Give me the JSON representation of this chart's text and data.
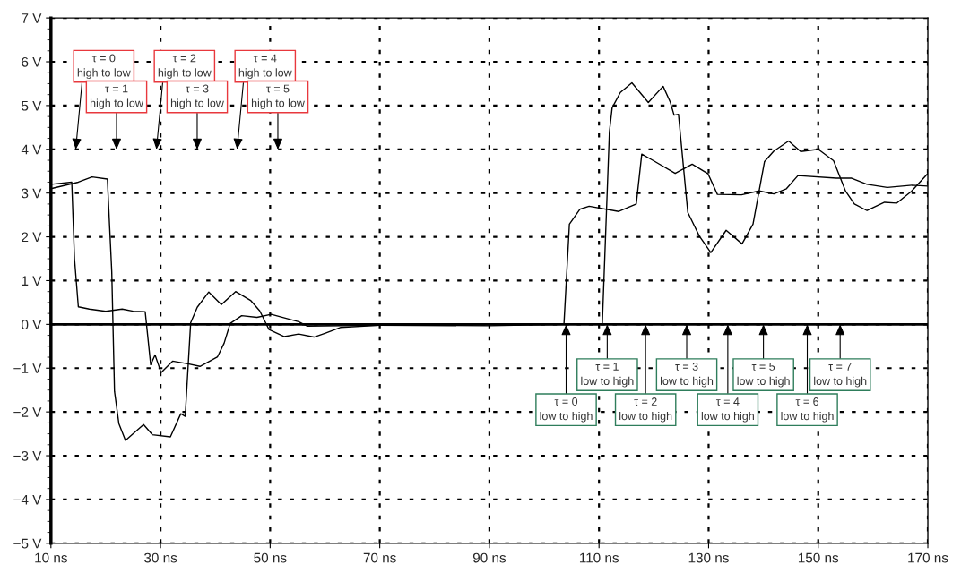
{
  "chart_data": {
    "type": "line",
    "xlim": [
      10,
      170
    ],
    "xticks": [
      {
        "value": 10,
        "label": "10 ns"
      },
      {
        "value": 30,
        "label": "30 ns"
      },
      {
        "value": 50,
        "label": "50 ns"
      },
      {
        "value": 70,
        "label": "70 ns"
      },
      {
        "value": 90,
        "label": "90 ns"
      },
      {
        "value": 110,
        "label": "110 ns"
      },
      {
        "value": 130,
        "label": "130 ns"
      },
      {
        "value": 150,
        "label": "150 ns"
      },
      {
        "value": 170,
        "label": "170 ns"
      }
    ],
    "ylim": [
      -5,
      7
    ],
    "yticks": [
      {
        "value": -5,
        "label": "−5 V"
      },
      {
        "value": -4,
        "label": "−4 V"
      },
      {
        "value": -3,
        "label": "−3 V"
      },
      {
        "value": -2,
        "label": "−2 V"
      },
      {
        "value": -1,
        "label": "−1 V"
      },
      {
        "value": 0,
        "label": "0 V"
      },
      {
        "value": 1,
        "label": "1 V"
      },
      {
        "value": 2,
        "label": "2 V"
      },
      {
        "value": 3,
        "label": "3 V"
      },
      {
        "value": 4,
        "label": "4 V"
      },
      {
        "value": 5,
        "label": "5 V"
      },
      {
        "value": 6,
        "label": "6 V"
      },
      {
        "value": 7,
        "label": "7 V"
      }
    ],
    "grid": true,
    "line_style": "solid",
    "ref_lines": [
      {
        "axis": "y",
        "value": 0,
        "color": "#000000"
      }
    ],
    "series": [
      {
        "color": "#000000",
        "x": [
          10,
          13.8,
          14.3,
          15,
          17,
          20,
          23,
          25,
          27.2,
          28.2,
          29,
          30.1,
          32.2,
          35,
          37.2,
          40.4,
          41.6,
          42.7,
          44.8,
          47.6,
          50.2,
          55.2,
          56.8,
          62.8,
          70,
          90,
          103.6,
          104.6,
          106.5,
          108.2,
          113.6,
          116.8,
          117.8,
          119.8,
          123.9,
          127,
          129.9,
          131.6,
          136,
          139.2,
          141.9,
          144.2,
          146.3,
          153.3,
          156.1,
          158.9,
          162.6,
          167.1,
          170
        ],
        "values": [
          3.2,
          3.25,
          1.5,
          0.4,
          0.35,
          0.3,
          0.35,
          0.3,
          0.29,
          -0.92,
          -0.7,
          -1.1,
          -0.84,
          -0.9,
          -0.96,
          -0.74,
          -0.43,
          0.02,
          0.2,
          0.16,
          0.23,
          0.06,
          -0.04,
          -0.03,
          -0.02,
          -0.03,
          0,
          2.29,
          2.63,
          2.7,
          2.58,
          2.75,
          3.89,
          3.75,
          3.45,
          3.66,
          3.44,
          2.97,
          2.96,
          3.05,
          2.98,
          3.1,
          3.4,
          3.34,
          3.34,
          3.2,
          3.13,
          3.18,
          3.16
        ]
      },
      {
        "color": "#000000",
        "x": [
          10,
          15,
          17.5,
          20.3,
          21.1,
          21.6,
          22.4,
          23.6,
          26.9,
          28.5,
          31.8,
          33.7,
          34.5,
          35.5,
          36.7,
          38.8,
          41.1,
          43.7,
          46.5,
          48.1,
          49.8,
          52.6,
          55.2,
          58,
          60.1,
          62.8,
          70,
          90,
          110.6,
          111.9,
          112.4,
          113.9,
          116,
          119,
          121.7,
          123,
          123.7,
          124.5,
          126.2,
          128.3,
          130.4,
          133.2,
          136.1,
          138.1,
          140.2,
          141.9,
          144.6,
          146.8,
          150,
          152.8,
          155,
          156.6,
          158.9,
          162.1,
          164.3,
          167,
          170
        ],
        "values": [
          3.1,
          3.25,
          3.37,
          3.32,
          1.2,
          -1.53,
          -2.27,
          -2.65,
          -2.29,
          -2.52,
          -2.57,
          -2.04,
          -2.1,
          0.04,
          0.39,
          0.74,
          0.45,
          0.75,
          0.54,
          0.31,
          -0.12,
          -0.28,
          -0.22,
          -0.29,
          -0.2,
          -0.07,
          -0.02,
          0,
          0,
          4.4,
          4.95,
          5.3,
          5.52,
          5.07,
          5.44,
          5.08,
          4.78,
          4.8,
          2.56,
          2.02,
          1.64,
          2.15,
          1.84,
          2.29,
          3.72,
          3.96,
          4.19,
          3.95,
          4.0,
          3.74,
          3.04,
          2.75,
          2.6,
          2.79,
          2.77,
          3.04,
          3.45
        ]
      }
    ],
    "annotations": [
      "τ = 0\nhigh to low",
      "τ = 1\nhigh to low",
      "τ = 2\nhigh to low",
      "τ = 3\nhigh to low",
      "τ = 4\nhigh to low",
      "τ = 5\nhigh to low",
      {
        "text": "τ = 0\nlow to high",
        "x": 104,
        "y": 0
      },
      {
        "text": "τ = 1\nlow to high",
        "x": 111.5,
        "y": 0
      },
      {
        "text": "τ = 2\nlow to high",
        "x": 118.5,
        "y": 0
      },
      {
        "text": "τ = 3\nlow to high",
        "x": 126,
        "y": 0
      },
      {
        "text": "τ = 4\nlow to high",
        "x": 133.5,
        "y": 0
      },
      {
        "text": "τ = 5\nlow to high",
        "x": 140,
        "y": 0
      },
      {
        "text": "τ = 6\nlow to high",
        "x": 148,
        "y": 0
      },
      {
        "text": "τ = 7\nlow to high",
        "x": 154,
        "y": 0
      }
    ]
  }
}
